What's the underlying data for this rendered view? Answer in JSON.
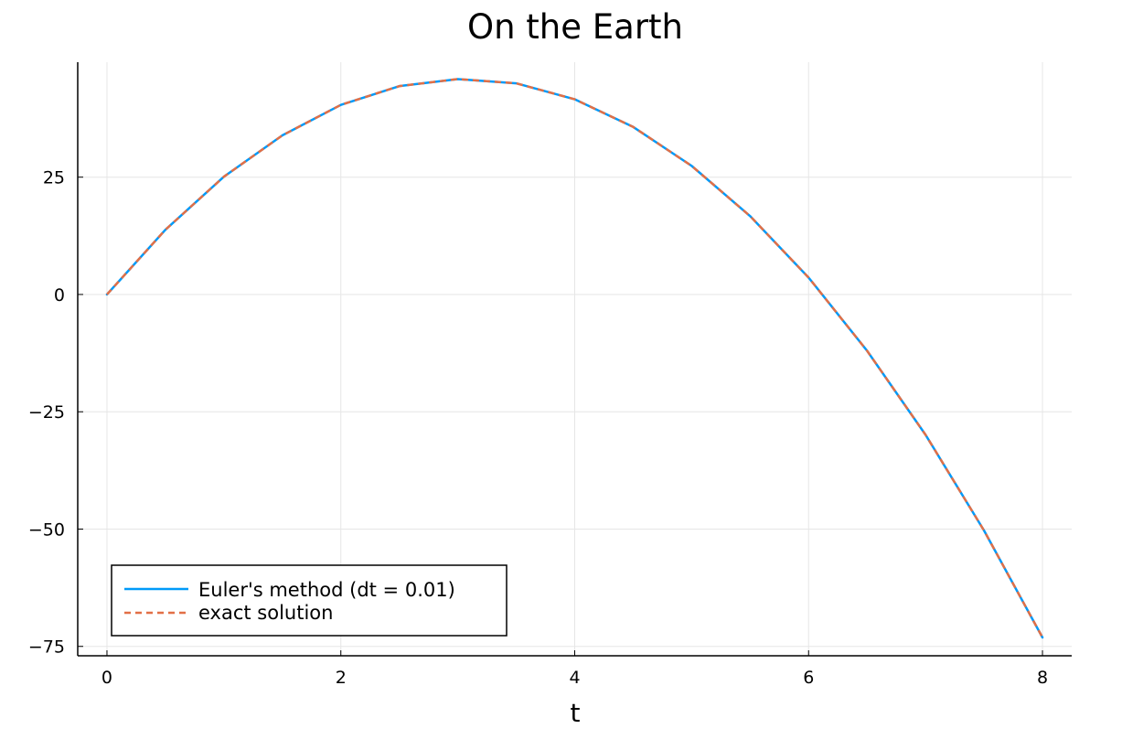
{
  "chart_data": {
    "type": "line",
    "title": "On the Earth",
    "xlabel": "t",
    "ylabel": "",
    "xlim": [
      -0.25,
      8.25
    ],
    "ylim": [
      -77,
      49.5
    ],
    "x_ticks": [
      0,
      2,
      4,
      6,
      8
    ],
    "x_tick_labels": [
      "0",
      "2",
      "4",
      "6",
      "8"
    ],
    "y_ticks": [
      -75,
      -50,
      -25,
      0,
      25
    ],
    "y_tick_labels": [
      "−75",
      "−50",
      "−25",
      "0",
      "25"
    ],
    "grid": true,
    "legend_position": "bottom-left",
    "series": [
      {
        "name": "Euler's method (dt = 0.01)",
        "color": "#009af9",
        "style": "solid",
        "x": [
          0,
          0.5,
          1,
          1.5,
          2,
          2.5,
          3,
          3.5,
          4,
          4.5,
          5,
          5.5,
          6,
          6.5,
          7,
          7.5,
          8
        ],
        "y": [
          0,
          13.8,
          25.1,
          33.9,
          40.4,
          44.4,
          45.9,
          45.0,
          41.6,
          35.7,
          27.4,
          16.7,
          3.6,
          -12.0,
          -29.9,
          -50.3,
          -73.1
        ]
      },
      {
        "name": "exact solution",
        "color": "#e26f46",
        "style": "dashed",
        "x": [
          0,
          0.5,
          1,
          1.5,
          2,
          2.5,
          3,
          3.5,
          4,
          4.5,
          5,
          5.5,
          6,
          6.5,
          7,
          7.5,
          8
        ],
        "y": [
          0,
          13.8,
          25.1,
          33.9,
          40.4,
          44.4,
          45.9,
          45.0,
          41.6,
          35.7,
          27.4,
          16.7,
          3.6,
          -12.0,
          -29.9,
          -50.3,
          -73.1
        ]
      }
    ]
  }
}
